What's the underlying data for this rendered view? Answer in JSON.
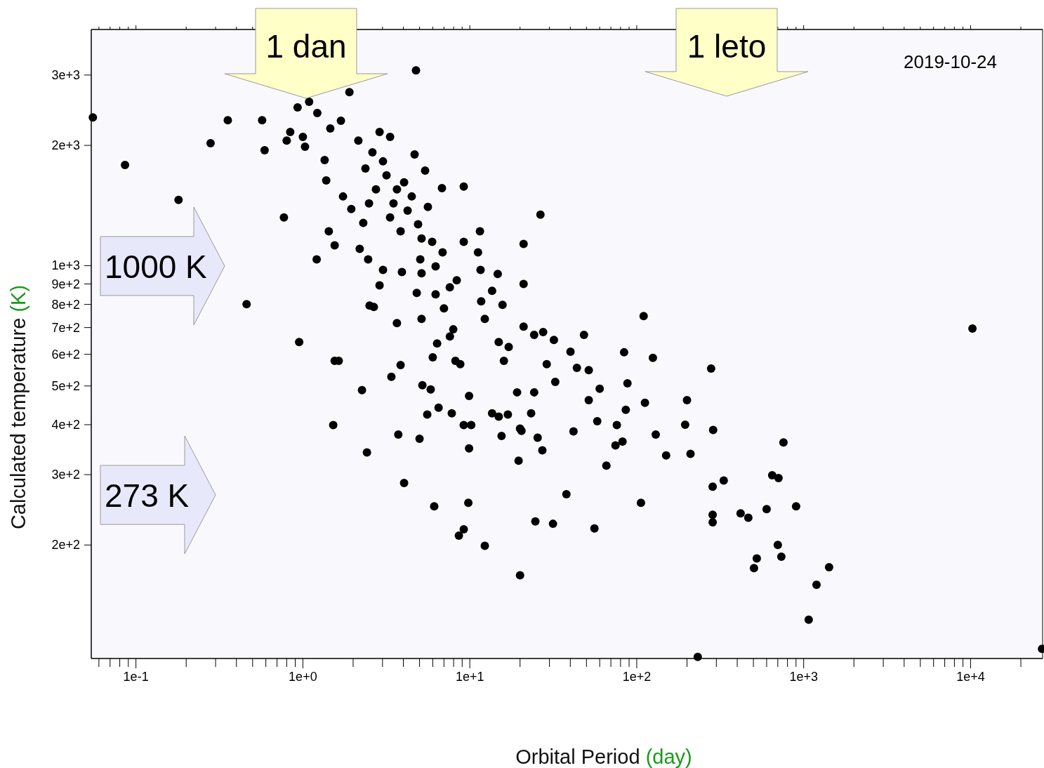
{
  "chart_data": {
    "type": "scatter",
    "xlabel": "Orbital Period (day)",
    "ylabel": "Calculated temperature (K)",
    "log": "xy",
    "marker": "circle",
    "color": "#000000",
    "xlim": [
      0.054,
      27000
    ],
    "ylim": [
      104,
      3900
    ],
    "xticks": [
      {
        "value": 0.06,
        "label": null
      },
      {
        "value": 0.07,
        "label": null
      },
      {
        "value": 0.08,
        "label": null
      },
      {
        "value": 0.09,
        "label": null
      },
      {
        "value": 0.1,
        "label": "1e-1"
      },
      {
        "value": 0.2,
        "label": null
      },
      {
        "value": 0.3,
        "label": null
      },
      {
        "value": 0.4,
        "label": null
      },
      {
        "value": 0.5,
        "label": null
      },
      {
        "value": 0.6,
        "label": null
      },
      {
        "value": 0.7,
        "label": null
      },
      {
        "value": 0.8,
        "label": null
      },
      {
        "value": 0.9,
        "label": null
      },
      {
        "value": 1,
        "label": "1e+0"
      },
      {
        "value": 2,
        "label": null
      },
      {
        "value": 3,
        "label": null
      },
      {
        "value": 4,
        "label": null
      },
      {
        "value": 5,
        "label": null
      },
      {
        "value": 6,
        "label": null
      },
      {
        "value": 7,
        "label": null
      },
      {
        "value": 8,
        "label": null
      },
      {
        "value": 9,
        "label": null
      },
      {
        "value": 10,
        "label": "1e+1"
      },
      {
        "value": 20,
        "label": null
      },
      {
        "value": 30,
        "label": null
      },
      {
        "value": 40,
        "label": null
      },
      {
        "value": 50,
        "label": null
      },
      {
        "value": 60,
        "label": null
      },
      {
        "value": 70,
        "label": null
      },
      {
        "value": 80,
        "label": null
      },
      {
        "value": 90,
        "label": null
      },
      {
        "value": 100,
        "label": "1e+2"
      },
      {
        "value": 200,
        "label": null
      },
      {
        "value": 300,
        "label": null
      },
      {
        "value": 400,
        "label": null
      },
      {
        "value": 500,
        "label": null
      },
      {
        "value": 600,
        "label": null
      },
      {
        "value": 700,
        "label": null
      },
      {
        "value": 800,
        "label": null
      },
      {
        "value": 900,
        "label": null
      },
      {
        "value": 1000,
        "label": "1e+3"
      },
      {
        "value": 2000,
        "label": null
      },
      {
        "value": 3000,
        "label": null
      },
      {
        "value": 4000,
        "label": null
      },
      {
        "value": 5000,
        "label": null
      },
      {
        "value": 6000,
        "label": null
      },
      {
        "value": 7000,
        "label": null
      },
      {
        "value": 8000,
        "label": null
      },
      {
        "value": 9000,
        "label": null
      },
      {
        "value": 10000,
        "label": "1e+4"
      },
      {
        "value": 20000,
        "label": null
      }
    ],
    "yticks": [
      {
        "value": 200,
        "label": "2e+2"
      },
      {
        "value": 300,
        "label": "3e+2"
      },
      {
        "value": 400,
        "label": "4e+2"
      },
      {
        "value": 500,
        "label": "5e+2"
      },
      {
        "value": 600,
        "label": "6e+2"
      },
      {
        "value": 700,
        "label": "7e+2"
      },
      {
        "value": 800,
        "label": "8e+2"
      },
      {
        "value": 900,
        "label": "9e+2"
      },
      {
        "value": 1000,
        "label": "1e+3"
      },
      {
        "value": 2000,
        "label": "2e+3"
      },
      {
        "value": 3000,
        "label": "3e+3"
      }
    ],
    "x": [
      0.0552,
      0.086,
      0.18,
      0.28,
      0.355,
      0.46,
      0.57,
      0.59,
      0.77,
      0.84,
      0.8,
      0.93,
      0.95,
      1.0,
      1.09,
      1.03,
      1.22,
      1.21,
      1.43,
      1.55,
      1.52,
      1.55,
      1.64,
      1.9,
      1.69,
      1.46,
      1.35,
      1.38,
      1.74,
      1.95,
      2.19,
      2.26,
      2.42,
      2.46,
      2.51,
      2.66,
      2.3,
      2.61,
      2.88,
      3.33,
      2.88,
      3.02,
      3.39,
      3.66,
      3.73,
      3.85,
      3.92,
      4.04,
      4.76,
      4.49,
      3.49,
      4.04,
      4.67,
      5.4,
      5.61,
      5.05,
      4.81,
      5.14,
      5.0,
      5.2,
      5.56,
      5.83,
      6.12,
      6.0,
      6.37,
      6.81,
      9.2,
      6.5,
      7.59,
      7.0,
      7.96,
      8.2,
      8.77,
      7.8,
      9.2,
      9.9,
      10.2,
      9.8,
      9.2,
      8.6,
      12.3,
      9.9,
      11.5,
      11.2,
      11.6,
      11.7,
      12.3,
      13.6,
      14.7,
      15.7,
      16.0,
      14.9,
      17.1,
      14.9,
      15.5,
      16.9,
      19.2,
      19.6,
      20.0,
      20.4,
      21.0,
      21.0,
      21.0,
      24.3,
      24.7,
      25.5,
      26.5,
      27.5,
      27.2,
      28.9,
      31.5,
      32.5,
      31.9,
      37.9,
      40.1,
      41.8,
      43.8,
      48.3,
      51.6,
      51.6,
      55.8,
      58.0,
      60,
      65.8,
      74.6,
      76,
      82.2,
      84,
      86,
      88,
      106,
      110,
      112,
      125,
      130,
      150,
      195,
      200,
      210,
      279,
      285,
      285,
      285,
      287,
      332,
      419,
      466,
      504,
      524,
      600,
      648,
      700,
      707,
      735,
      757,
      901,
      1072,
      1194,
      1420,
      10260,
      232,
      26800,
      20.0,
      23.3,
      13.6,
      24.3,
      7.6,
      8.35,
      6.24,
      3.85,
      3.17,
      4.24,
      2.74,
      2.37,
      2.15,
      3.02,
      3.66,
      2.49,
      3.33,
      4.9,
      5.14,
      5.95,
      6.87,
      9.2,
      6.24,
      5.14
    ],
    "values": [
      2350,
      1787,
      1461,
      2025,
      2312,
      801,
      2312,
      1945,
      1321,
      2160,
      2057,
      2489,
      644,
      2100,
      2570,
      1985,
      2409,
      1037,
      1219,
      1124,
      399,
      578,
      578,
      2718,
      2305,
      2205,
      1838,
      1635,
      1490,
      1386,
      1102,
      488,
      341,
      1037,
      795,
      788,
      1279,
      1922,
      2160,
      2100,
      893,
      976,
      527,
      718,
      378,
      564,
      964,
      286,
      3080,
      1490,
      1432,
      1616,
      1898,
      1730,
      1403,
      1037,
      855,
      736,
      369,
      502,
      424,
      490,
      250,
      590,
      639,
      1564,
      1578,
      441,
      883,
      782,
      693,
      578,
      567,
      427,
      399,
      349,
      399,
      255,
      219,
      211,
      199,
      472,
      1219,
      1080,
      976,
      814,
      736,
      865,
      953,
      798,
      578,
      644,
      626,
      419,
      375,
      424,
      482,
      325,
      168,
      386,
      1133,
      900,
      704,
      671,
      229,
      371,
      1342,
      682,
      345,
      567,
      226,
      512,
      652,
      268,
      609,
      385,
      555,
      671,
      548,
      461,
      220,
      408,
      492,
      316,
      355,
      399,
      363,
      607,
      436,
      508,
      255,
      748,
      454,
      588,
      378,
      335,
      400,
      461,
      338,
      553,
      280,
      238,
      228,
      388,
      290,
      240,
      234,
      175,
      185,
      246,
      299,
      200,
      294,
      187,
      361,
      250,
      130,
      159,
      176,
      696,
      105,
      110,
      391,
      427,
      427,
      482,
      665,
      919,
      996,
      1219,
      1683,
      1374,
      1552,
      1751,
      2057,
      1824,
      1552,
      1432,
      1321,
      1269,
      1170,
      1147,
      1080,
      1147,
      848,
      957
    ],
    "annotations": [
      "1 dan",
      "1 leto",
      "1000 K",
      "273 K",
      "2019-10-24"
    ]
  }
}
